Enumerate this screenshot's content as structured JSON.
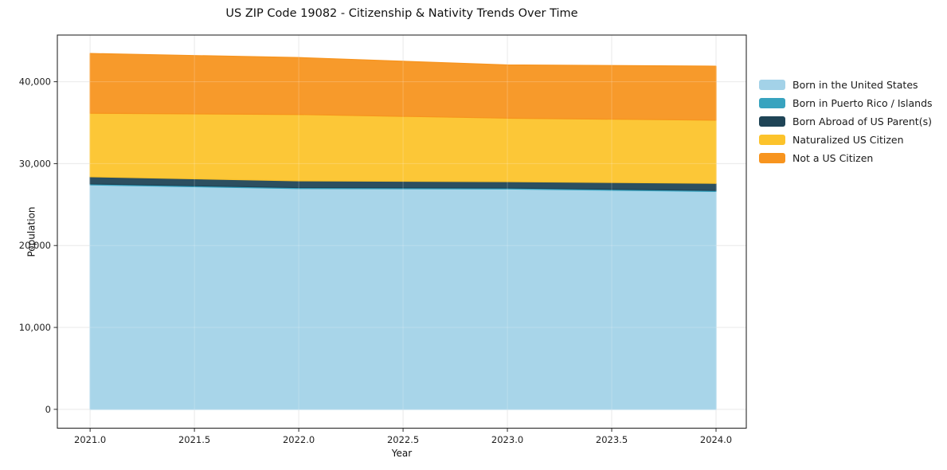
{
  "chart_data": {
    "type": "area",
    "stacked": true,
    "title": "US ZIP Code 19082 - Citizenship & Nativity Trends Over Time",
    "xlabel": "Year",
    "ylabel": "Population",
    "x": [
      2021,
      2022,
      2023,
      2024
    ],
    "series": [
      {
        "name": "Born in the United States",
        "color": "#a3d2e8",
        "values": [
          27400,
          26950,
          26900,
          26600
        ]
      },
      {
        "name": "Born in Puerto Rico / Islands",
        "color": "#38a3bf",
        "values": [
          120,
          120,
          120,
          120
        ]
      },
      {
        "name": "Born Abroad of US Parent(s)",
        "color": "#1f4456",
        "values": [
          880,
          830,
          780,
          880
        ]
      },
      {
        "name": "Naturalized US Citizen",
        "color": "#fcc32b",
        "values": [
          7750,
          8100,
          7750,
          7700
        ]
      },
      {
        "name": "Not a US Citizen",
        "color": "#f7941e",
        "values": [
          7300,
          6950,
          6500,
          6600
        ]
      }
    ],
    "cumulative_totals": [
      43450,
      42950,
      42050,
      41900
    ],
    "xlim": [
      2020.843,
      2024.145
    ],
    "ylim": [
      -2300,
      45700
    ],
    "xticks": {
      "values": [
        2021.0,
        2021.5,
        2022.0,
        2022.5,
        2023.0,
        2023.5,
        2024.0
      ],
      "labels": [
        "2021.0",
        "2021.5",
        "2022.0",
        "2022.5",
        "2023.0",
        "2023.5",
        "2024.0"
      ]
    },
    "yticks": {
      "values": [
        0,
        10000,
        20000,
        30000,
        40000
      ],
      "labels": [
        "0",
        "10,000",
        "20,000",
        "30,000",
        "40,000"
      ]
    },
    "grid": true,
    "grid_color": "#e4e4e4",
    "spine_color": "#2a2a2a",
    "tick_label_color": "#1f1f1f",
    "legend_position": "right"
  }
}
